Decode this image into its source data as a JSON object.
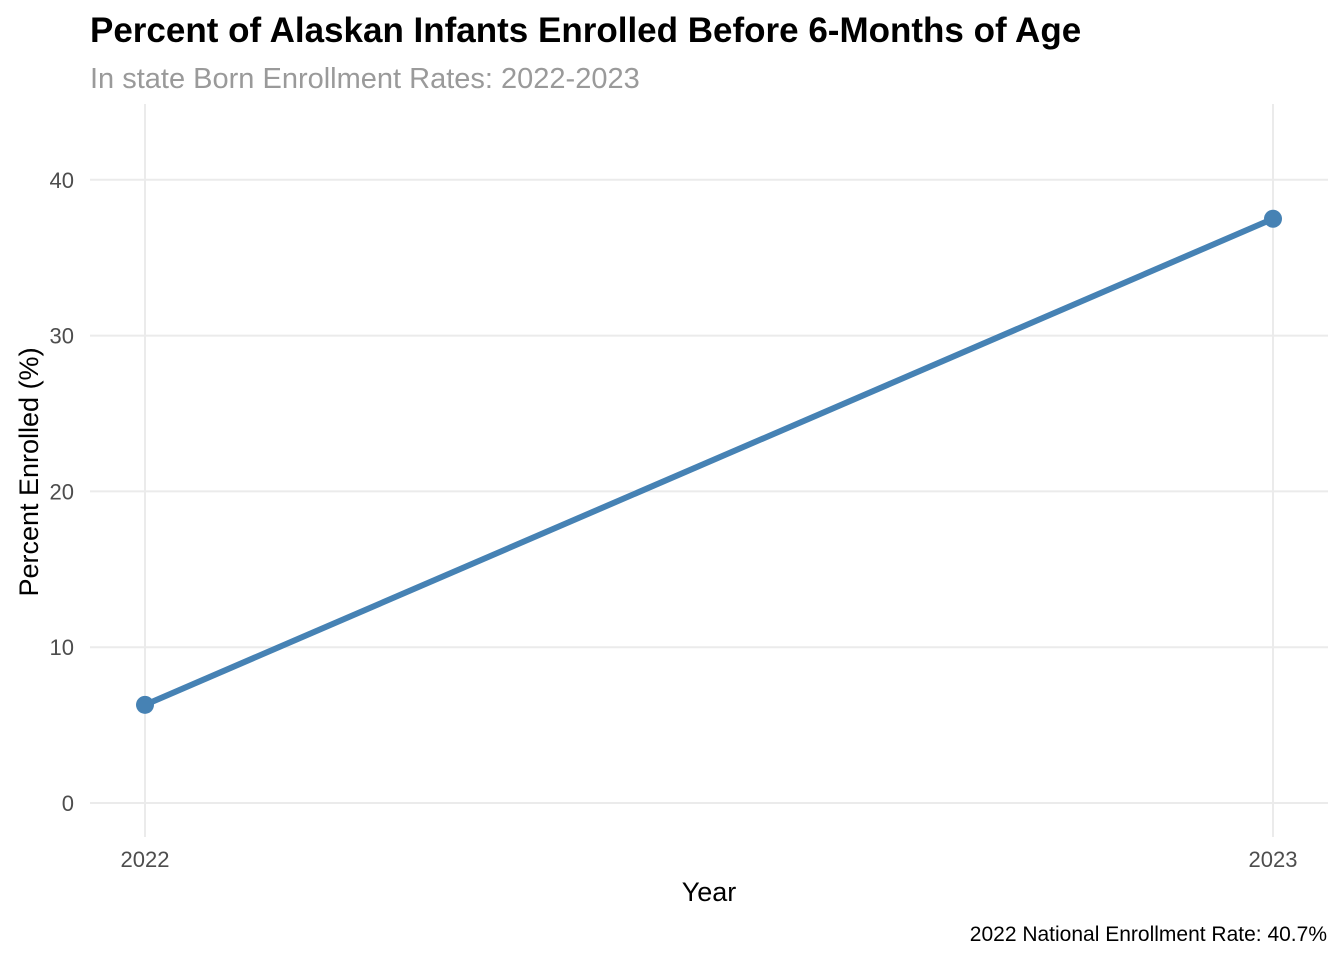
{
  "chart_data": {
    "type": "line",
    "title": "Percent of Alaskan Infants Enrolled Before 6-Months of Age",
    "subtitle": "In state Born Enrollment Rates: 2022-2023",
    "xlabel": "Year",
    "ylabel": "Percent Enrolled (%)",
    "caption": "2022 National Enrollment Rate: 40.7%",
    "categories": [
      "2022",
      "2023"
    ],
    "series": [
      {
        "values": [
          6.3,
          37.5
        ]
      }
    ],
    "ylim": [
      0,
      43
    ],
    "yticks": [
      0,
      10,
      20,
      30,
      40
    ],
    "grid": true,
    "legend": "none",
    "colors": {
      "line": "#4682b4",
      "grid": "#ebebeb"
    }
  }
}
